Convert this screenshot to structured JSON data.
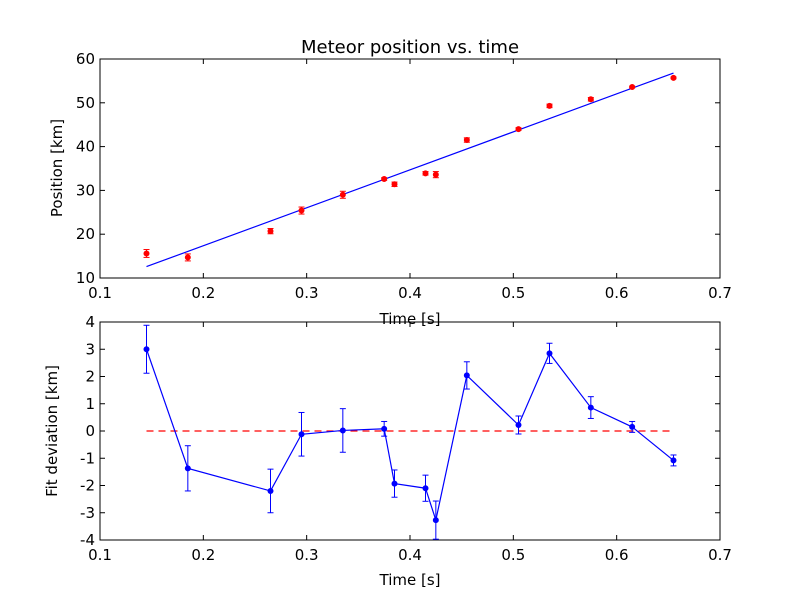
{
  "chart_data": [
    {
      "type": "scatter",
      "title": "Meteor position vs. time",
      "xlabel": "Time [s]",
      "ylabel": "Position [km]",
      "xlim": [
        0.1,
        0.7
      ],
      "ylim": [
        10,
        60
      ],
      "xticks": [
        0.1,
        0.2,
        0.3,
        0.4,
        0.5,
        0.6,
        0.7
      ],
      "yticks": [
        10,
        20,
        30,
        40,
        50,
        60
      ],
      "grid": false,
      "colors": {
        "points": "#ff0000",
        "fit": "#0000ff"
      },
      "points": {
        "x": [
          0.145,
          0.185,
          0.265,
          0.295,
          0.335,
          0.375,
          0.385,
          0.415,
          0.425,
          0.455,
          0.505,
          0.535,
          0.575,
          0.615,
          0.655
        ],
        "y": [
          15.6,
          14.7,
          20.7,
          25.4,
          29.0,
          32.6,
          31.4,
          33.9,
          33.6,
          41.5,
          44.0,
          49.3,
          50.8,
          53.6,
          55.7
        ],
        "yerr": [
          0.9,
          0.8,
          0.6,
          0.8,
          0.8,
          0.3,
          0.5,
          0.4,
          0.7,
          0.5,
          0.3,
          0.4,
          0.4,
          0.2,
          0.2
        ]
      },
      "fit_line": {
        "x": [
          0.145,
          0.655
        ],
        "y": [
          12.6,
          56.8
        ]
      }
    },
    {
      "type": "line",
      "title": "",
      "xlabel": "Time [s]",
      "ylabel": "Fit deviation [km]",
      "xlim": [
        0.1,
        0.7
      ],
      "ylim": [
        -4,
        4
      ],
      "xticks": [
        0.1,
        0.2,
        0.3,
        0.4,
        0.5,
        0.6,
        0.7
      ],
      "yticks": [
        -4,
        -3,
        -2,
        -1,
        0,
        1,
        2,
        3,
        4
      ],
      "grid": false,
      "colors": {
        "series": "#0000ff",
        "reference": "#ff0000"
      },
      "series": {
        "x": [
          0.145,
          0.185,
          0.265,
          0.295,
          0.335,
          0.375,
          0.385,
          0.415,
          0.425,
          0.455,
          0.505,
          0.535,
          0.575,
          0.615,
          0.655
        ],
        "y": [
          3.0,
          -1.37,
          -2.2,
          -0.12,
          0.02,
          0.08,
          -1.93,
          -2.1,
          -3.27,
          2.04,
          0.22,
          2.85,
          0.86,
          0.15,
          -1.08
        ],
        "yerr": [
          0.88,
          0.83,
          0.8,
          0.8,
          0.8,
          0.27,
          0.5,
          0.48,
          0.7,
          0.5,
          0.33,
          0.37,
          0.4,
          0.2,
          0.2
        ]
      },
      "reference_line": {
        "x": [
          0.145,
          0.655
        ],
        "y": [
          0,
          0
        ]
      }
    }
  ]
}
